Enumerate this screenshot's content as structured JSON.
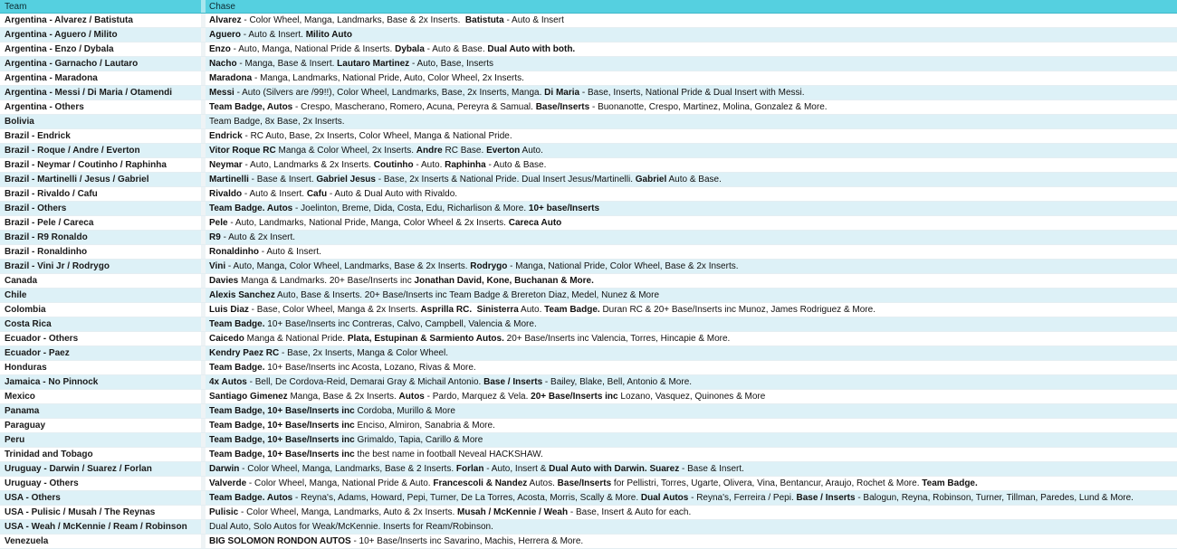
{
  "table": {
    "header": [
      "Team",
      "Chase"
    ],
    "rows": [
      {
        "team": "Argentina - Alvarez / Batistuta",
        "chase": [
          {
            "bold": "Alvarez"
          },
          " - Color Wheel, Manga, Landmarks, Base & 2x Inserts.  ",
          {
            "bold": "Batistuta"
          },
          " - Auto & Insert"
        ]
      },
      {
        "team": "Argentina - Aguero / Milito",
        "chase": [
          {
            "bold": "Aguero"
          },
          " - Auto & Insert. ",
          {
            "bold": "Milito Auto"
          }
        ]
      },
      {
        "team": "Argentina - Enzo / Dybala",
        "chase": [
          {
            "bold": "Enzo"
          },
          " - Auto, Manga, National Pride & Inserts. ",
          {
            "bold": "Dybala"
          },
          " - Auto & Base. ",
          {
            "bold": "Dual Auto with both."
          }
        ]
      },
      {
        "team": "Argentina - Garnacho / Lautaro",
        "chase": [
          {
            "bold": "Nacho"
          },
          " - Manga, Base & Insert. ",
          {
            "bold": "Lautaro Martinez"
          },
          " - Auto, Base, Inserts"
        ]
      },
      {
        "team": "Argentina - Maradona",
        "chase": [
          {
            "bold": "Maradona"
          },
          " - Manga, Landmarks, National Pride, Auto, Color Wheel, 2x Inserts."
        ]
      },
      {
        "team": "Argentina - Messi / Di Maria / Otamendi",
        "chase": [
          {
            "bold": "Messi"
          },
          " - Auto (Silvers are /99!!), Color Wheel, Landmarks, Base, 2x Inserts, Manga. ",
          {
            "bold": "Di Maria"
          },
          " - Base, Inserts, National Pride & Dual Insert with Messi."
        ]
      },
      {
        "team": "Argentina - Others",
        "chase": [
          {
            "bold": "Team Badge, Autos"
          },
          " - Crespo, Mascherano, Romero, Acuna, Pereyra & Samual. ",
          {
            "bold": "Base/Inserts"
          },
          " - Buonanotte, Crespo, Martinez, Molina, Gonzalez & More."
        ]
      },
      {
        "team": "Bolivia",
        "chase": [
          "Team Badge, 8x Base, 2x Inserts."
        ]
      },
      {
        "team": "Brazil - Endrick",
        "chase": [
          {
            "bold": "Endrick"
          },
          " - RC Auto, Base, 2x Inserts, Color Wheel, Manga & National Pride."
        ]
      },
      {
        "team": "Brazil - Roque / Andre / Everton",
        "chase": [
          {
            "bold": "Vitor Roque RC"
          },
          " Manga & Color Wheel, 2x Inserts. ",
          {
            "bold": "Andre"
          },
          " RC Base. ",
          {
            "bold": "Everton"
          },
          " Auto."
        ]
      },
      {
        "team": "Brazil - Neymar / Coutinho / Raphinha",
        "chase": [
          {
            "bold": "Neymar"
          },
          " - Auto, Landmarks & 2x Inserts. ",
          {
            "bold": "Coutinho"
          },
          " - Auto. ",
          {
            "bold": "Raphinha"
          },
          " - Auto & Base."
        ]
      },
      {
        "team": "Brazil - Martinelli / Jesus / Gabriel",
        "chase": [
          {
            "bold": "Martinelli"
          },
          " - Base & Insert. ",
          {
            "bold": "Gabriel Jesus"
          },
          " - Base, 2x Inserts & National Pride. Dual Insert Jesus/Martinelli. ",
          {
            "bold": "Gabriel"
          },
          " Auto & Base."
        ]
      },
      {
        "team": "Brazil - Rivaldo / Cafu",
        "chase": [
          {
            "bold": "Rivaldo"
          },
          " - Auto & Insert. ",
          {
            "bold": "Cafu"
          },
          " - Auto & Dual Auto with Rivaldo."
        ]
      },
      {
        "team": "Brazil - Others",
        "chase": [
          {
            "bold": "Team Badge. Autos"
          },
          " - Joelinton, Breme, Dida, Costa, Edu, Richarlison & More. ",
          {
            "bold": "10+ base/Inserts"
          }
        ]
      },
      {
        "team": "Brazil - Pele / Careca",
        "chase": [
          {
            "bold": "Pele"
          },
          " - Auto, Landmarks, National Pride, Manga, Color Wheel & 2x Inserts. ",
          {
            "bold": "Careca Auto"
          }
        ]
      },
      {
        "team": "Brazil - R9 Ronaldo",
        "chase": [
          {
            "bold": "R9"
          },
          " - Auto & 2x Insert."
        ]
      },
      {
        "team": "Brazil - Ronaldinho",
        "chase": [
          {
            "bold": "Ronaldinho"
          },
          " - Auto & Insert."
        ]
      },
      {
        "team": "Brazil - Vini Jr / Rodrygo",
        "chase": [
          {
            "bold": "Vini"
          },
          " - Auto, Manga, Color Wheel, Landmarks, Base & 2x Inserts. ",
          {
            "bold": "Rodrygo"
          },
          " - Manga, National Pride, Color Wheel, Base & 2x Inserts."
        ]
      },
      {
        "team": "Canada",
        "chase": [
          {
            "bold": "Davies"
          },
          " Manga & Landmarks. 20+ Base/Inserts inc ",
          {
            "bold": "Jonathan David, Kone, Buchanan & More."
          }
        ]
      },
      {
        "team": "Chile",
        "chase": [
          {
            "bold": "Alexis Sanchez"
          },
          " Auto, Base & Inserts. 20+ Base/Inserts inc Team Badge & Brereton Diaz, Medel, Nunez & More"
        ]
      },
      {
        "team": "Colombia",
        "chase": [
          {
            "bold": "Luis Diaz"
          },
          " - Base, Color Wheel, Manga & 2x Inserts. ",
          {
            "bold": "Asprilla RC.  Sinisterra"
          },
          " Auto. ",
          {
            "bold": "Team Badge."
          },
          " Duran RC & 20+ Base/Inserts inc Munoz, James Rodriguez & More."
        ]
      },
      {
        "team": "Costa Rica",
        "chase": [
          {
            "bold": "Team Badge."
          },
          " 10+ Base/Inserts inc Contreras, Calvo, Campbell, Valencia & More."
        ]
      },
      {
        "team": "Ecuador - Others",
        "chase": [
          {
            "bold": "Caicedo"
          },
          " Manga & National Pride. ",
          {
            "bold": "Plata, Estupinan & Sarmiento Autos."
          },
          " 20+ Base/Inserts inc Valencia, Torres, Hincapie & More."
        ]
      },
      {
        "team": "Ecuador - Paez",
        "chase": [
          {
            "bold": "Kendry Paez RC"
          },
          " - Base, 2x Inserts, Manga & Color Wheel."
        ]
      },
      {
        "team": "Honduras",
        "chase": [
          {
            "bold": "Team Badge."
          },
          " 10+ Base/Inserts inc Acosta, Lozano, Rivas & More."
        ]
      },
      {
        "team": "Jamaica - No Pinnock",
        "chase": [
          {
            "bold": "4x Autos"
          },
          " - Bell, De Cordova-Reid, Demarai Gray & Michail Antonio. ",
          {
            "bold": "Base / Inserts"
          },
          " - Bailey, Blake, Bell, Antonio & More."
        ]
      },
      {
        "team": "Mexico",
        "chase": [
          {
            "bold": "Santiago Gimenez"
          },
          " Manga, Base & 2x Inserts. ",
          {
            "bold": "Autos"
          },
          " - Pardo, Marquez & Vela. ",
          {
            "bold": "20+ Base/Inserts inc"
          },
          " Lozano, Vasquez, Quinones & More"
        ]
      },
      {
        "team": "Panama",
        "chase": [
          {
            "bold": "Team Badge, 10+ Base/Inserts inc"
          },
          " Cordoba, Murillo & More"
        ]
      },
      {
        "team": "Paraguay",
        "chase": [
          {
            "bold": "Team Badge, 10+ Base/Inserts inc"
          },
          " Enciso, Almiron, Sanabria & More."
        ]
      },
      {
        "team": "Peru",
        "chase": [
          {
            "bold": "Team Badge, 10+ Base/Inserts inc"
          },
          " Grimaldo, Tapia, Carillo & More"
        ]
      },
      {
        "team": "Trinidad and Tobago",
        "chase": [
          {
            "bold": "Team Badge, 10+ Base/Inserts inc"
          },
          " the best name in football Neveal HACKSHAW."
        ]
      },
      {
        "team": "Uruguay - Darwin / Suarez / Forlan",
        "chase": [
          {
            "bold": "Darwin"
          },
          " - Color Wheel, Manga, Landmarks, Base & 2 Inserts. ",
          {
            "bold": "Forlan"
          },
          " - Auto, Insert & ",
          {
            "bold": "Dual Auto with Darwin. Suarez"
          },
          " - Base & Insert."
        ]
      },
      {
        "team": "Uruguay - Others",
        "chase": [
          {
            "bold": "Valverde"
          },
          " - Color Wheel, Manga, National Pride & Auto. ",
          {
            "bold": "Francescoli & Nandez"
          },
          " Autos. ",
          {
            "bold": "Base/Inserts"
          },
          " for Pellistri, Torres, Ugarte, Olivera, Vina, Bentancur, Araujo, Rochet & More. ",
          {
            "bold": "Team Badge."
          }
        ]
      },
      {
        "team": "USA - Others",
        "chase": [
          {
            "bold": "Team Badge. Autos"
          },
          " - Reyna's, Adams, Howard, Pepi, Turner, De La Torres, Acosta, Morris, Scally & More. ",
          {
            "bold": "Dual Autos"
          },
          " - Reyna's, Ferreira / Pepi. ",
          {
            "bold": "Base / Inserts"
          },
          " - Balogun, Reyna, Robinson, Turner, Tillman, Paredes, Lund & More."
        ]
      },
      {
        "team": "USA - Pulisic / Musah / The Reynas",
        "chase": [
          {
            "bold": "Pulisic"
          },
          " - Color Wheel, Manga, Landmarks, Auto & 2x Inserts. ",
          {
            "bold": "Musah / McKennie / Weah"
          },
          " - Base, Insert & Auto for each."
        ]
      },
      {
        "team": "USA - Weah / McKennie / Ream / Robinson",
        "chase": [
          "Dual Auto, Solo Autos for Weak/McKennie. Inserts for Ream/Robinson."
        ]
      },
      {
        "team": "Venezuela",
        "chase": [
          {
            "bold": "BIG SOLOMON RONDON AUTOS"
          },
          " - 10+ Base/Inserts inc Savarino, Machis, Herrera & More."
        ]
      }
    ]
  }
}
